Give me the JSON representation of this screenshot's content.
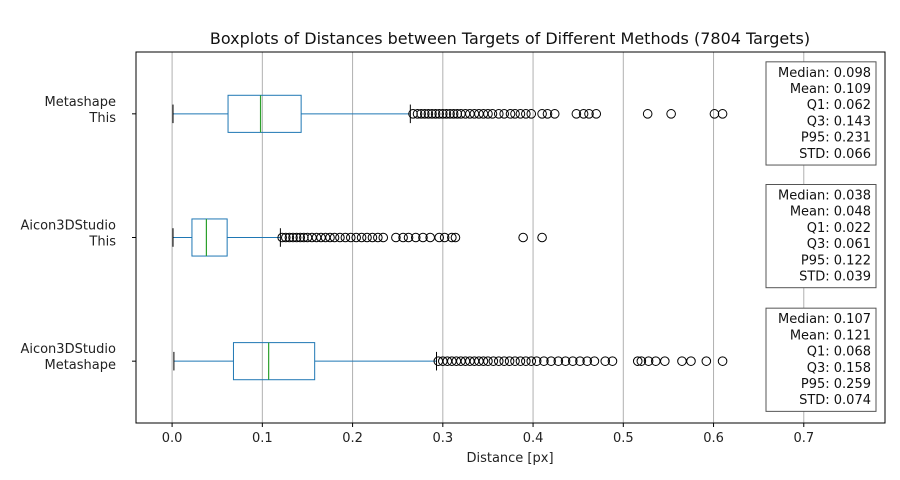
{
  "chart_data": {
    "type": "boxplot",
    "orientation": "horizontal",
    "title": "Boxplots of Distances between Targets of Different Methods (7804 Targets)",
    "xlabel": "Distance [px]",
    "ylabel": "",
    "xlim": [
      -0.04,
      0.79
    ],
    "xticks": [
      0.0,
      0.1,
      0.2,
      0.3,
      0.4,
      0.5,
      0.6,
      0.7
    ],
    "xtick_labels": [
      "0.0",
      "0.1",
      "0.2",
      "0.3",
      "0.4",
      "0.5",
      "0.6",
      "0.7"
    ],
    "grid": "vertical",
    "colors": {
      "box": "#1f77b4",
      "median": "#2ca02c",
      "whisker": "#1f77b4",
      "cap": "#000000",
      "flier": "#000000"
    },
    "series": [
      {
        "name": "Metashape\nThis",
        "label_lines": [
          "Metashape",
          "This"
        ],
        "whislo": 0.001,
        "q1": 0.062,
        "median": 0.098,
        "q3": 0.143,
        "whishi": 0.264,
        "fliers": [
          0.267,
          0.272,
          0.276,
          0.28,
          0.284,
          0.288,
          0.292,
          0.296,
          0.3,
          0.304,
          0.308,
          0.312,
          0.316,
          0.32,
          0.325,
          0.33,
          0.335,
          0.34,
          0.345,
          0.35,
          0.355,
          0.362,
          0.368,
          0.375,
          0.38,
          0.386,
          0.392,
          0.398,
          0.41,
          0.416,
          0.424,
          0.448,
          0.456,
          0.462,
          0.47,
          0.527,
          0.553,
          0.601,
          0.61
        ],
        "stats": [
          "Median: 0.098",
          "Mean: 0.109",
          "Q1: 0.062",
          "Q3: 0.143",
          "P95: 0.231",
          "STD: 0.066"
        ]
      },
      {
        "name": "Aicon3DStudio\nThis",
        "label_lines": [
          "Aicon3DStudio",
          "This"
        ],
        "whislo": 0.001,
        "q1": 0.022,
        "median": 0.038,
        "q3": 0.061,
        "whishi": 0.12,
        "fliers": [
          0.122,
          0.126,
          0.13,
          0.134,
          0.138,
          0.142,
          0.146,
          0.15,
          0.155,
          0.16,
          0.165,
          0.17,
          0.175,
          0.18,
          0.186,
          0.192,
          0.198,
          0.204,
          0.21,
          0.216,
          0.222,
          0.228,
          0.234,
          0.248,
          0.256,
          0.262,
          0.27,
          0.278,
          0.286,
          0.296,
          0.302,
          0.31,
          0.314,
          0.389,
          0.41
        ],
        "stats": [
          "Median: 0.038",
          "Mean: 0.048",
          "Q1: 0.022",
          "Q3: 0.061",
          "P95: 0.122",
          "STD: 0.039"
        ]
      },
      {
        "name": "Aicon3DStudio\nMetashape",
        "label_lines": [
          "Aicon3DStudio",
          "Metashape"
        ],
        "whislo": 0.002,
        "q1": 0.068,
        "median": 0.107,
        "q3": 0.158,
        "whishi": 0.293,
        "fliers": [
          0.295,
          0.3,
          0.305,
          0.31,
          0.315,
          0.32,
          0.325,
          0.33,
          0.335,
          0.34,
          0.345,
          0.35,
          0.356,
          0.362,
          0.368,
          0.374,
          0.38,
          0.386,
          0.392,
          0.398,
          0.404,
          0.412,
          0.42,
          0.428,
          0.436,
          0.444,
          0.452,
          0.46,
          0.468,
          0.48,
          0.488,
          0.516,
          0.52,
          0.528,
          0.536,
          0.546,
          0.565,
          0.575,
          0.592,
          0.61
        ],
        "stats": [
          "Median: 0.107",
          "Mean: 0.121",
          "Q1: 0.068",
          "Q3: 0.158",
          "P95: 0.259",
          "STD: 0.074"
        ]
      }
    ]
  }
}
